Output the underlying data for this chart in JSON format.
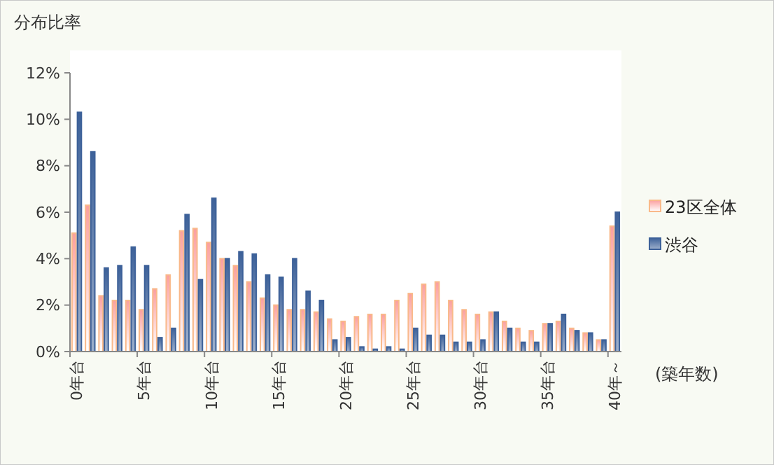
{
  "chart_data": {
    "type": "bar",
    "ylabel": "分布比率",
    "xlabel": "(築年数)",
    "categories": [
      "0年台",
      null,
      null,
      null,
      null,
      "5年台",
      null,
      null,
      null,
      null,
      "10年台",
      null,
      null,
      null,
      null,
      "15年台",
      null,
      null,
      null,
      null,
      "20年台",
      null,
      null,
      null,
      null,
      "25年台",
      null,
      null,
      null,
      null,
      "30年台",
      null,
      null,
      null,
      null,
      "35年台",
      null,
      null,
      null,
      null,
      "40年～"
    ],
    "series": [
      {
        "name": "23区全体",
        "color": "#f9b98a",
        "values": [
          5.1,
          6.3,
          2.4,
          2.2,
          2.2,
          1.8,
          2.7,
          3.3,
          5.2,
          5.3,
          4.7,
          4.0,
          3.7,
          3.0,
          2.3,
          2.0,
          1.8,
          1.8,
          1.7,
          1.4,
          1.3,
          1.5,
          1.6,
          1.6,
          2.2,
          2.5,
          2.9,
          3.0,
          2.2,
          1.8,
          1.6,
          1.7,
          1.3,
          1.0,
          0.9,
          1.2,
          1.3,
          1.0,
          0.8,
          0.5,
          5.4
        ]
      },
      {
        "name": "渋谷",
        "color": "#3d6199",
        "values": [
          10.3,
          8.6,
          3.6,
          3.7,
          4.5,
          3.7,
          0.6,
          1.0,
          5.9,
          3.1,
          6.6,
          4.0,
          4.3,
          4.2,
          3.3,
          3.2,
          4.0,
          2.6,
          2.2,
          0.5,
          0.6,
          0.2,
          0.1,
          0.2,
          0.1,
          1.0,
          0.7,
          0.7,
          0.4,
          0.4,
          0.5,
          1.7,
          1.0,
          0.4,
          0.4,
          1.2,
          1.6,
          0.9,
          0.8,
          0.5,
          6.0
        ]
      }
    ],
    "ylim": [
      0,
      12
    ],
    "yticks": [
      {
        "value": 0,
        "label": "0%"
      },
      {
        "value": 2,
        "label": "2%"
      },
      {
        "value": 4,
        "label": "4%"
      },
      {
        "value": 6,
        "label": "6%"
      },
      {
        "value": 8,
        "label": "8%"
      },
      {
        "value": 10,
        "label": "10%"
      },
      {
        "value": 12,
        "label": "12%"
      }
    ],
    "grid": false,
    "legend": "right"
  }
}
